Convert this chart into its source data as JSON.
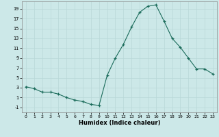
{
  "x": [
    0,
    1,
    2,
    3,
    4,
    5,
    6,
    7,
    8,
    9,
    10,
    11,
    12,
    13,
    14,
    15,
    16,
    17,
    18,
    19,
    20,
    21,
    22,
    23
  ],
  "y": [
    3.2,
    2.8,
    2.1,
    2.1,
    1.7,
    1.0,
    0.5,
    0.2,
    -0.4,
    -0.6,
    5.5,
    9.0,
    11.8,
    15.3,
    18.3,
    19.5,
    19.8,
    16.5,
    13.0,
    11.2,
    9.0,
    6.8,
    6.8,
    5.8
  ],
  "line_color": "#1a6b5a",
  "marker": "+",
  "marker_size": 3,
  "xlabel": "Humidex (Indice chaleur)",
  "xlim": [
    -0.5,
    23.5
  ],
  "ylim": [
    -2,
    20.5
  ],
  "yticks": [
    -1,
    1,
    3,
    5,
    7,
    9,
    11,
    13,
    15,
    17,
    19
  ],
  "xticks": [
    0,
    1,
    2,
    3,
    4,
    5,
    6,
    7,
    8,
    9,
    10,
    11,
    12,
    13,
    14,
    15,
    16,
    17,
    18,
    19,
    20,
    21,
    22,
    23
  ],
  "bg_color": "#cce8e8",
  "grid_color": "#b8d8d8",
  "spine_color": "#888888"
}
